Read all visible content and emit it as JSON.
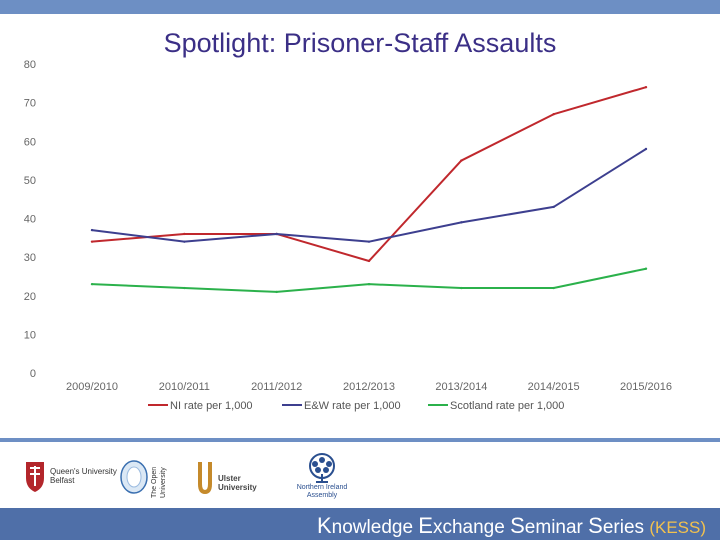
{
  "slide": {
    "title": "Spotlight: Prisoner-Staff Assaults"
  },
  "chart_data": {
    "type": "line",
    "title": "",
    "xlabel": "",
    "ylabel": "",
    "categories": [
      "2009/2010",
      "2010/2011",
      "2011/2012",
      "2012/2013",
      "2013/2014",
      "2014/2015",
      "2015/2016"
    ],
    "ylim": [
      0,
      80
    ],
    "yticks": [
      0,
      10,
      20,
      30,
      40,
      50,
      60,
      70,
      80
    ],
    "grid": false,
    "legend_position": "bottom",
    "series": [
      {
        "name": "NI rate per 1,000",
        "color": "#c0282d",
        "values": [
          34,
          36,
          36,
          29,
          55,
          67,
          74
        ]
      },
      {
        "name": "E&W rate per 1,000",
        "color": "#3d3f8f",
        "values": [
          37,
          34,
          36,
          34,
          39,
          43,
          58
        ]
      },
      {
        "name": "Scotland rate per 1,000",
        "color": "#2bb14b",
        "values": [
          23,
          22,
          21,
          23,
          22,
          22,
          27
        ]
      }
    ]
  },
  "footer": {
    "logos": [
      {
        "name": "Queen's University Belfast",
        "line1": "Queen's University",
        "line2": "Belfast",
        "icon": "crest-icon",
        "color": "#b3262b"
      },
      {
        "name": "The Open University",
        "line1": "The Open",
        "line2": "University",
        "icon": "circle-icon",
        "color": "#3a6fb0"
      },
      {
        "name": "Ulster University",
        "line1": "Ulster",
        "line2": "University",
        "icon": "u-icon",
        "color": "#c58a2b"
      },
      {
        "name": "Northern Ireland Assembly",
        "line1": "Northern Ireland",
        "line2": "Assembly",
        "icon": "flax-icon",
        "color": "#2a4f8f"
      }
    ],
    "banner_parts": [
      {
        "initial": "K",
        "rest": "nowledge "
      },
      {
        "initial": "E",
        "rest": "xchange "
      },
      {
        "initial": "S",
        "rest": "eminar "
      },
      {
        "initial": "S",
        "rest": "eries "
      }
    ],
    "banner_suffix": "(KESS)"
  }
}
